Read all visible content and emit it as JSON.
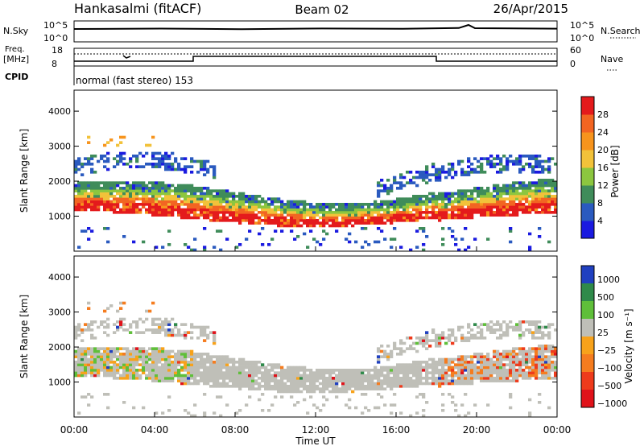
{
  "header": {
    "station": "Hankasalmi (fitACF)",
    "beam": "Beam 02",
    "date": "26/Apr/2015"
  },
  "top_panels": {
    "nsky_label": "N.Sky",
    "nsearch_label": "N.Search",
    "freq_label_1": "Freq.",
    "freq_label_2": "[MHz]",
    "nave_label": "Nave",
    "cpid_label": "CPID",
    "cpid_text": "normal (fast stereo) 153",
    "noise_ticks": [
      "10^5",
      "10^0"
    ],
    "freq_ticks": [
      "18",
      "8"
    ],
    "nave_ticks": [
      "60",
      "0"
    ]
  },
  "axes": {
    "ylabel": "Slant Range [km]",
    "xlabel": "Time UT",
    "x_ticks": [
      "00:00",
      "04:00",
      "08:00",
      "12:00",
      "16:00",
      "20:00",
      "00:00"
    ],
    "y_ticks": [
      "1000",
      "2000",
      "3000",
      "4000"
    ]
  },
  "power_scale": {
    "label": "Power [dB]",
    "ticks": [
      "4",
      "8",
      "12",
      "16",
      "20",
      "24",
      "28"
    ],
    "colors": [
      "#1a1ae0",
      "#2a5abf",
      "#3f8c5a",
      "#8cc63f",
      "#f2c23a",
      "#f7941d",
      "#f26522",
      "#e41a1c"
    ]
  },
  "velocity_scale": {
    "label": "Velocity [m s⁻¹]",
    "ticks": [
      "1000",
      "500",
      "100",
      "25",
      "−25",
      "−100",
      "−500",
      "−1000"
    ],
    "colors": [
      "#2040c0",
      "#2f8a4a",
      "#5fbf3a",
      "#bfbfb8",
      "#f7a21b",
      "#f57c1f",
      "#ee3b1c",
      "#e0121a"
    ]
  },
  "chart_data": [
    {
      "type": "heatmap",
      "title": "Power",
      "xlabel": "Time UT",
      "ylabel": "Slant Range [km]",
      "x_range_hours": [
        0,
        24
      ],
      "ylim": [
        0,
        4600
      ],
      "colorbar": {
        "label": "Power [dB]",
        "range": [
          0,
          32
        ]
      },
      "description_values": {
        "main_echo_band_km": [
          1000,
          2100
        ],
        "outer_echo_band_km": [
          2300,
          3200
        ],
        "peak_power_dB": 30
      }
    },
    {
      "type": "heatmap",
      "title": "Velocity",
      "xlabel": "Time UT",
      "ylabel": "Slant Range [km]",
      "x_range_hours": [
        0,
        24
      ],
      "ylim": [
        0,
        4600
      ],
      "colorbar": {
        "label": "Velocity [m s⁻¹]",
        "range": [
          -1000,
          1000
        ]
      },
      "description_values": {
        "main_echo_band_km": [
          1000,
          2200
        ],
        "dominant_velocity_ms": 0
      }
    }
  ]
}
